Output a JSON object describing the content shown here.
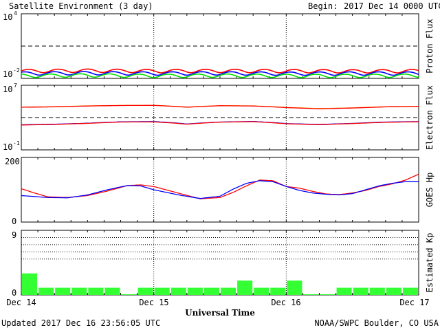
{
  "header": {
    "title": "Satellite Environment (3 day)",
    "begin_label": "Begin:",
    "begin_value": "2017 Dec 14 0000 UTC"
  },
  "footer": {
    "updated": "Updated 2017 Dec 16 23:56:05 UTC",
    "credit": "NOAA/SWPC Boulder, CO USA",
    "xlabel": "Universal Time"
  },
  "x_ticks": [
    "Dec 14",
    "Dec 15",
    "Dec 16",
    "Dec 17"
  ],
  "chart_data": [
    {
      "type": "line",
      "ylabel": "Proton Flux",
      "scale": "log",
      "ylim": [
        0.01,
        10000
      ],
      "y_tick_labels": [
        {
          "base": "10",
          "exp": "4"
        },
        {
          "base": "10",
          "exp": "-2"
        }
      ],
      "threshold": 10,
      "x": [
        0,
        0.5,
        1,
        1.5,
        2,
        2.5,
        3
      ],
      "series": [
        {
          "color": "#ff0000",
          "values": [
            0.05,
            0.055,
            0.05,
            0.052,
            0.05,
            0.048,
            0.05
          ]
        },
        {
          "color": "#0000ff",
          "values": [
            0.03,
            0.032,
            0.03,
            0.031,
            0.029,
            0.03,
            0.03
          ]
        },
        {
          "color": "#00dd00",
          "values": [
            0.018,
            0.02,
            0.018,
            0.019,
            0.018,
            0.018,
            0.019
          ]
        }
      ]
    },
    {
      "type": "line",
      "ylabel": "Electron Flux",
      "scale": "log",
      "ylim": [
        0.1,
        10000000
      ],
      "y_tick_labels": [
        {
          "base": "10",
          "exp": "7"
        },
        {
          "base": "10",
          "exp": "-1"
        }
      ],
      "threshold": 1000,
      "x": [
        0,
        0.25,
        0.5,
        0.75,
        1,
        1.25,
        1.5,
        1.75,
        2,
        2.25,
        2.5,
        2.75,
        3
      ],
      "series": [
        {
          "color": "#ffa500",
          "values": [
            20000,
            22000,
            28000,
            32000,
            33000,
            20000,
            30000,
            28000,
            18000,
            13000,
            16000,
            22000,
            25000
          ]
        },
        {
          "color": "#ff0000",
          "values": [
            19000,
            21000,
            27000,
            31000,
            32000,
            19000,
            29000,
            27000,
            17000,
            12000,
            15000,
            21000,
            24000
          ]
        },
        {
          "color": "#0000ff",
          "values": [
            130,
            150,
            200,
            300,
            320,
            160,
            280,
            330,
            180,
            140,
            190,
            280,
            320
          ]
        },
        {
          "color": "#ff0000",
          "values": [
            120,
            140,
            190,
            280,
            290,
            150,
            270,
            310,
            170,
            130,
            180,
            260,
            300
          ]
        }
      ]
    },
    {
      "type": "line",
      "ylabel": "GOES Hp",
      "scale": "linear",
      "ylim": [
        0,
        200
      ],
      "y_tick_labels": [
        "200",
        "0"
      ],
      "x": [
        0,
        0.1,
        0.2,
        0.35,
        0.5,
        0.65,
        0.8,
        0.9,
        1.0,
        1.2,
        1.35,
        1.5,
        1.6,
        1.7,
        1.8,
        1.9,
        2.0,
        2.1,
        2.2,
        2.3,
        2.4,
        2.5,
        2.6,
        2.7,
        2.8,
        2.9,
        3.0
      ],
      "series": [
        {
          "color": "#ff0000",
          "values": [
            103,
            90,
            78,
            76,
            82,
            96,
            113,
            115,
            110,
            88,
            72,
            76,
            92,
            112,
            130,
            128,
            110,
            105,
            95,
            87,
            85,
            90,
            98,
            110,
            118,
            130,
            148
          ]
        },
        {
          "color": "#0000ff",
          "values": [
            82,
            79,
            76,
            75,
            84,
            100,
            113,
            112,
            100,
            83,
            73,
            80,
            102,
            120,
            128,
            125,
            110,
            98,
            90,
            86,
            84,
            88,
            100,
            112,
            120,
            125,
            125
          ]
        }
      ]
    },
    {
      "type": "bar",
      "ylabel": "Estimated Kp",
      "ylim": [
        0,
        9
      ],
      "y_tick_labels": [
        "9",
        "0"
      ],
      "storm_levels": [
        5,
        6,
        7,
        8,
        9
      ],
      "bar_color": "#33ff33",
      "values": [
        3,
        1,
        1,
        1,
        1,
        1,
        0.1,
        1,
        1,
        1,
        1,
        1,
        1,
        2,
        1,
        1,
        2,
        0.1,
        0.1,
        1,
        1,
        1,
        1,
        1
      ]
    }
  ]
}
